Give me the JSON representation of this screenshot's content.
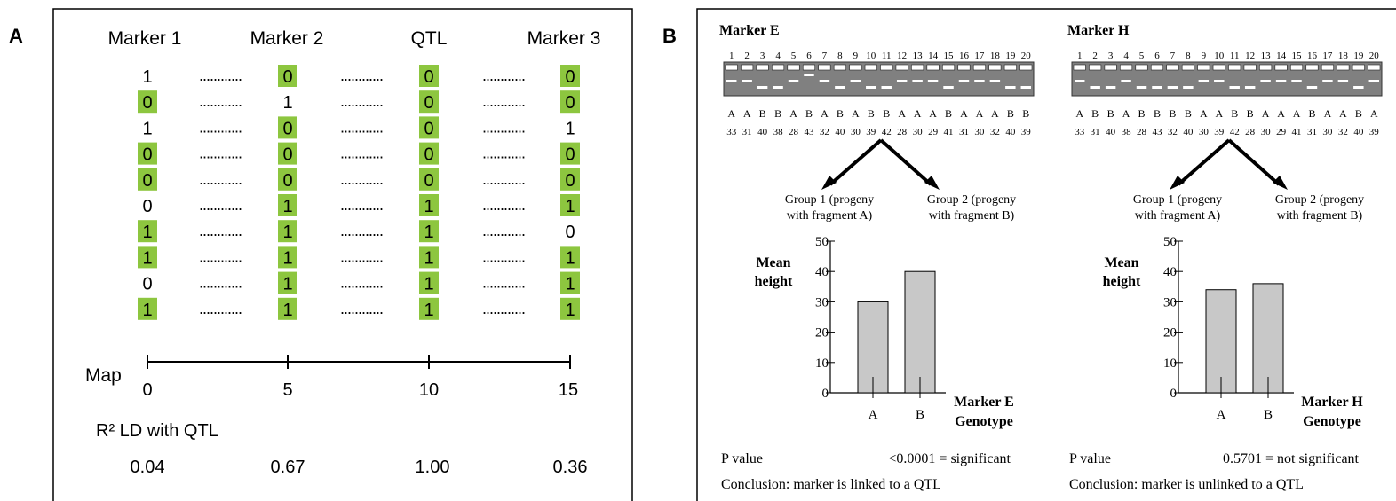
{
  "panel_a": {
    "letter": "A",
    "headers": [
      "Marker 1",
      "Marker 2",
      "QTL",
      "Marker 3"
    ],
    "rows": [
      [
        "1",
        "0",
        "0",
        "0"
      ],
      [
        "0",
        "1",
        "0",
        "0"
      ],
      [
        "1",
        "0",
        "0",
        "1"
      ],
      [
        "0",
        "0",
        "0",
        "0"
      ],
      [
        "0",
        "0",
        "0",
        "0"
      ],
      [
        "0",
        "1",
        "1",
        "1"
      ],
      [
        "1",
        "1",
        "1",
        "0"
      ],
      [
        "1",
        "1",
        "1",
        "1"
      ],
      [
        "0",
        "1",
        "1",
        "1"
      ],
      [
        "1",
        "1",
        "1",
        "1"
      ]
    ],
    "highlighted": [
      [
        false,
        true,
        true,
        true
      ],
      [
        true,
        false,
        true,
        true
      ],
      [
        false,
        true,
        true,
        false
      ],
      [
        true,
        true,
        true,
        true
      ],
      [
        true,
        true,
        true,
        true
      ],
      [
        false,
        true,
        true,
        true
      ],
      [
        true,
        true,
        true,
        false
      ],
      [
        true,
        true,
        true,
        true
      ],
      [
        false,
        true,
        true,
        true
      ],
      [
        true,
        true,
        true,
        true
      ]
    ],
    "highlight_color": "#8dc63f",
    "dots": "............",
    "map_label": "Map",
    "map_ticks": [
      "0",
      "5",
      "10",
      "15"
    ],
    "r2_label": "R² LD with QTL",
    "r2_values": [
      "0.04",
      "0.67",
      "1.00",
      "0.36"
    ]
  },
  "panel_b": {
    "letter": "B",
    "markers": [
      {
        "title": "Marker E",
        "lanes": [
          "1",
          "2",
          "3",
          "4",
          "5",
          "6",
          "7",
          "8",
          "9",
          "10",
          "11",
          "12",
          "13",
          "14",
          "15",
          "16",
          "17",
          "18",
          "19",
          "20"
        ],
        "genotypes": [
          "A",
          "A",
          "B",
          "B",
          "A",
          "B",
          "A",
          "B",
          "A",
          "B",
          "B",
          "A",
          "A",
          "A",
          "B",
          "A",
          "A",
          "A",
          "B",
          "B"
        ],
        "heights": [
          "33",
          "31",
          "40",
          "38",
          "28",
          "43",
          "32",
          "40",
          "30",
          "39",
          "42",
          "28",
          "30",
          "29",
          "41",
          "31",
          "30",
          "32",
          "40",
          "39"
        ],
        "group1": [
          "Group 1 (progeny",
          "with fragment A)"
        ],
        "group2": [
          "Group 2 (progeny",
          "with fragment B)"
        ],
        "chart_data": {
          "type": "bar",
          "categories": [
            "A",
            "B"
          ],
          "values": [
            30,
            40
          ],
          "ylabel": "Mean height",
          "xlabel": "Marker E Genotype",
          "yticks": [
            "0",
            "10",
            "20",
            "30",
            "40",
            "50"
          ],
          "ylim": [
            0,
            50
          ]
        },
        "ylabel_lines": [
          "Mean",
          "height"
        ],
        "xlabel_lines": [
          "Marker E",
          "Genotype"
        ],
        "p_label": "P value",
        "p_text": "<0.0001 = significant",
        "conclusion": "Conclusion: marker is linked to a QTL"
      },
      {
        "title": "Marker H",
        "lanes": [
          "1",
          "2",
          "3",
          "4",
          "5",
          "6",
          "7",
          "8",
          "9",
          "10",
          "11",
          "12",
          "13",
          "14",
          "15",
          "16",
          "17",
          "18",
          "19",
          "20"
        ],
        "genotypes": [
          "A",
          "B",
          "B",
          "A",
          "B",
          "B",
          "B",
          "B",
          "A",
          "A",
          "B",
          "B",
          "A",
          "A",
          "A",
          "B",
          "A",
          "A",
          "B",
          "A"
        ],
        "heights": [
          "33",
          "31",
          "40",
          "38",
          "28",
          "43",
          "32",
          "40",
          "30",
          "39",
          "42",
          "28",
          "30",
          "29",
          "41",
          "31",
          "30",
          "32",
          "40",
          "39"
        ],
        "group1": [
          "Group 1 (progeny",
          "with fragment A)"
        ],
        "group2": [
          "Group 2 (progeny",
          "with fragment B)"
        ],
        "chart_data": {
          "type": "bar",
          "categories": [
            "A",
            "B"
          ],
          "values": [
            34,
            36
          ],
          "ylabel": "Mean height",
          "xlabel": "Marker H Genotype",
          "yticks": [
            "0",
            "10",
            "20",
            "30",
            "40",
            "50"
          ],
          "ylim": [
            0,
            50
          ]
        },
        "ylabel_lines": [
          "Mean",
          "height"
        ],
        "xlabel_lines": [
          "Marker H",
          "Genotype"
        ],
        "p_label": "P value",
        "p_text": "0.5701 = not significant",
        "conclusion": "Conclusion: marker is unlinked to a QTL"
      }
    ]
  }
}
